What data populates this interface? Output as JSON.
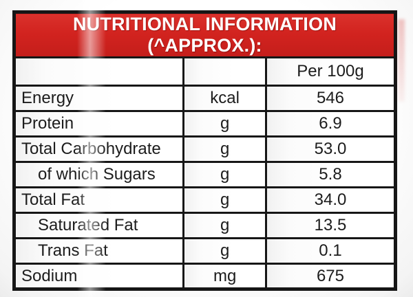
{
  "header": {
    "title": "NUTRITIONAL INFORMATION (^APPROX.):"
  },
  "table": {
    "column_header": "Per 100g",
    "rows": [
      {
        "label": "Energy",
        "unit": "kcal",
        "value": "546",
        "indent": false
      },
      {
        "label": "Protein",
        "unit": "g",
        "value": "6.9",
        "indent": false
      },
      {
        "label": "Total Carbohydrate",
        "unit": "g",
        "value": "53.0",
        "indent": false
      },
      {
        "label": "of which Sugars",
        "unit": "g",
        "value": "5.8",
        "indent": true
      },
      {
        "label": "Total Fat",
        "unit": "g",
        "value": "34.0",
        "indent": false
      },
      {
        "label": "Saturated Fat",
        "unit": "g",
        "value": "13.5",
        "indent": true
      },
      {
        "label": "Trans Fat",
        "unit": "g",
        "value": "0.1",
        "indent": true
      },
      {
        "label": "Sodium",
        "unit": "mg",
        "value": "675",
        "indent": false
      }
    ]
  },
  "colors": {
    "header_red": "#d2231f",
    "border": "#161616",
    "text": "#1c1c1c"
  }
}
